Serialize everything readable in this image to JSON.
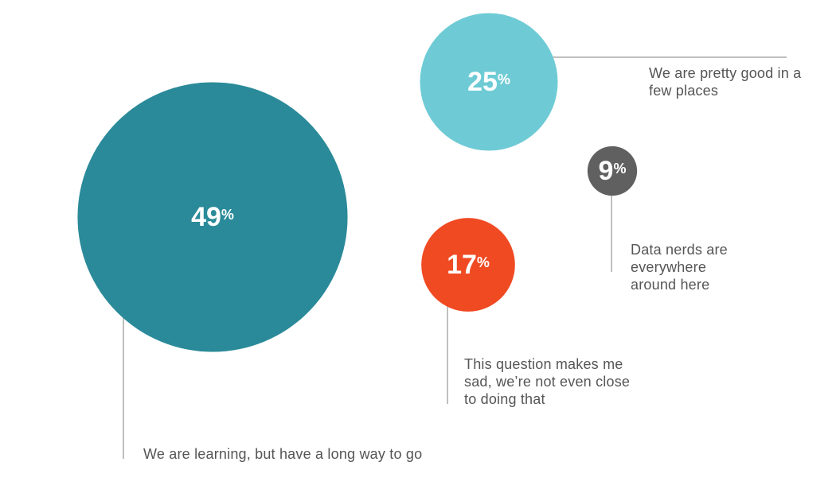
{
  "chart_data": {
    "type": "bubble",
    "categories": [
      "We are learning, but have a long way to go",
      "We are pretty good in a few places",
      "This question makes me sad, we’re not even close to doing that",
      "Data nerds are everywhere around here"
    ],
    "values": [
      49,
      25,
      17,
      9
    ],
    "value_labels": [
      "49%",
      "25%",
      "17%",
      "9%"
    ],
    "colors": [
      "#2a8a99",
      "#6ecbd5",
      "#f04a23",
      "#606060"
    ]
  }
}
